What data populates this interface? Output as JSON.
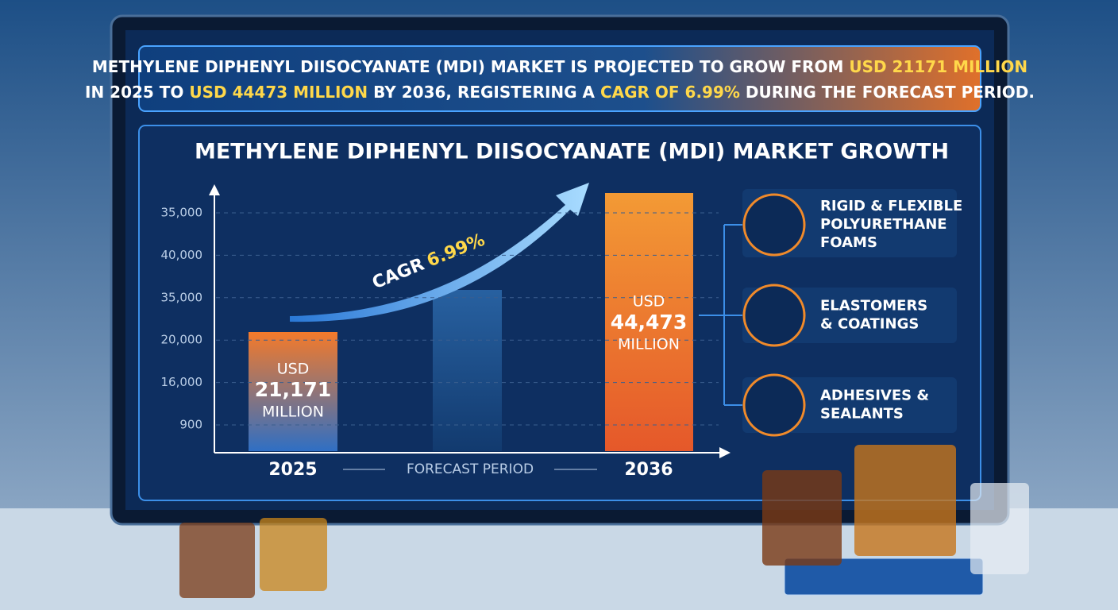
{
  "banner": {
    "lines": [
      [
        {
          "text": "METHYLENE DIPHENYL DIISOCYANATE (MDI) MARKET IS PROJECTED TO GROW FROM ",
          "highlight": false
        },
        {
          "text": "USD 21171 MILLION",
          "highlight": true
        }
      ],
      [
        {
          "text": "IN 2025 TO ",
          "highlight": false
        },
        {
          "text": "USD 44473 MILLION",
          "highlight": true
        },
        {
          "text": " BY 2036, REGISTERING A ",
          "highlight": false
        },
        {
          "text": "CAGR OF 6.99%",
          "highlight": true
        },
        {
          "text": " DURING THE FORECAST PERIOD.",
          "highlight": false
        }
      ]
    ]
  },
  "panel": {
    "title": "METHYLENE DIPHENYL DIISOCYANATE (MDI) MARKET GROWTH",
    "axis_labels": [
      "35,000",
      "40,000",
      "35,000",
      "20,000",
      "16,000",
      "900"
    ],
    "bars": [
      {
        "year": "2025",
        "label": [
          "USD",
          "21,171",
          "MILLION"
        ]
      },
      {
        "year": "2036",
        "label": [
          "USD",
          "44,473",
          "MILLION"
        ]
      }
    ],
    "forecast_label": "FORECAST PERIOD",
    "cagr": {
      "prefix": "CAGR",
      "value": "6.99%"
    },
    "applications": [
      [
        "RIGID & FLEXIBLE",
        "POLYURETHANE",
        "FOAMS"
      ],
      [
        "ELASTOMERS",
        "& COATINGS"
      ],
      [
        "ADHESIVES &",
        "SEALANTS"
      ]
    ]
  }
}
